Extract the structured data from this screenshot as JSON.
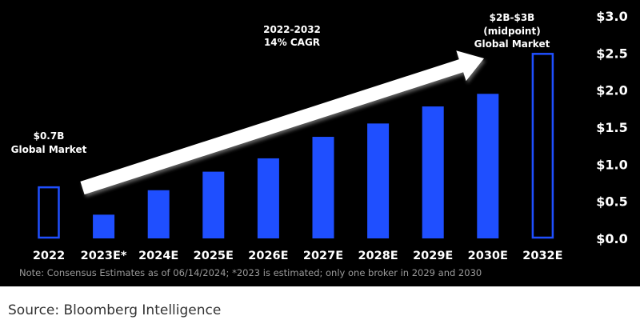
{
  "colors": {
    "background": "#000000",
    "bar": "#1f4fff",
    "text": "#ffffff",
    "note": "#9a9a9a"
  },
  "chart_data": {
    "type": "bar",
    "title": "",
    "xlabel": "",
    "ylabel": "",
    "ylim": [
      0,
      3.0
    ],
    "yticks": [
      "$0.0",
      "$0.5",
      "$1.0",
      "$1.5",
      "$2.0",
      "$2.5",
      "$3.0"
    ],
    "y_axis_position": "right",
    "grid": false,
    "categories": [
      "2022",
      "2023E*",
      "2024E",
      "2025E",
      "2026E",
      "2027E",
      "2028E",
      "2029E",
      "2030E",
      "2032E"
    ],
    "values": [
      0.7,
      0.32,
      0.65,
      0.9,
      1.08,
      1.37,
      1.55,
      1.78,
      1.95,
      2.5
    ],
    "outlined_bars": [
      "2022",
      "2032E"
    ],
    "annotations": {
      "start": [
        "$0.7B",
        "Global Market"
      ],
      "cagr": [
        "2022-2032",
        "14% CAGR"
      ],
      "end": [
        "$2B-$3B",
        "(midpoint)",
        "Global Market"
      ]
    }
  },
  "note": "Note: Consensus Estimates as of 06/14/2024; *2023 is estimated; only one broker in 2029 and 2030",
  "source": "Source: Bloomberg Intelligence"
}
